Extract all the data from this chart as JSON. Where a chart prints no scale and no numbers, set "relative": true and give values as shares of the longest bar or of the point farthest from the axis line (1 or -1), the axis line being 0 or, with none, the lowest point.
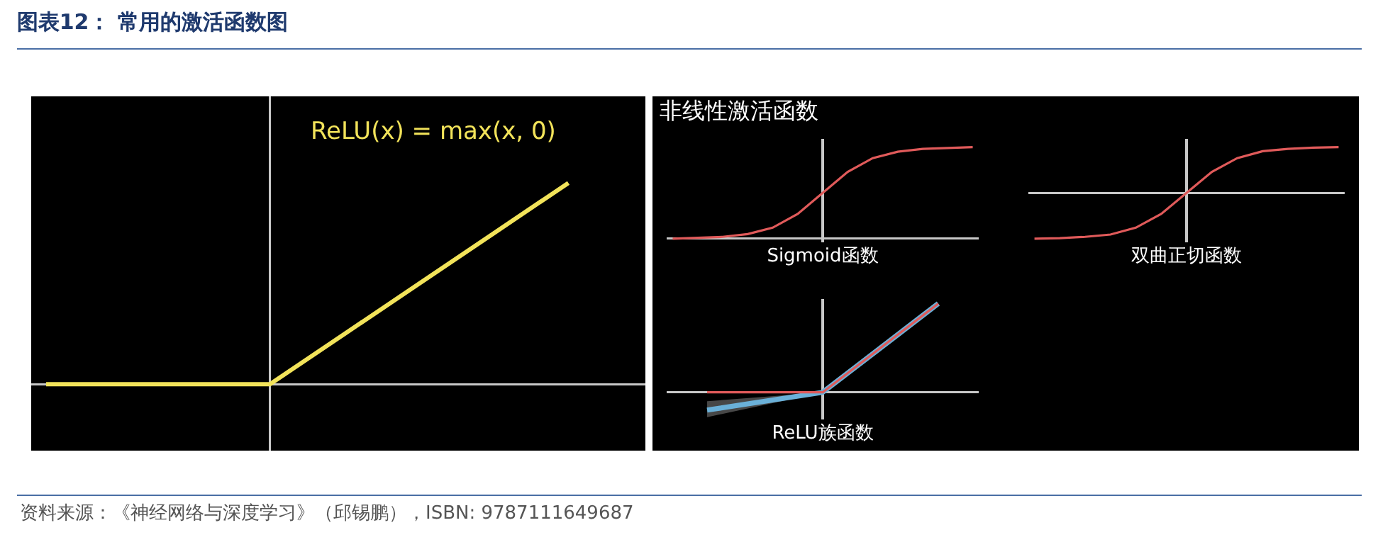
{
  "chart_data": [
    {
      "type": "line",
      "title": "图表12： 常用的激活函数图",
      "relative": true,
      "annotations": [
        "ReLU(x) = max(x, 0)",
        "资料来源：《神经网络与深度学习》（邱锡鹏），ISBN: 9787111649687"
      ],
      "categories": [
        null,
        null,
        null,
        null,
        null,
        null,
        null,
        null,
        null
      ],
      "series": [
        {
          "color": "#f2e35a",
          "values": [
            null,
            0,
            0,
            0,
            0,
            0.25,
            0.5,
            0.75,
            1
          ]
        }
      ]
    },
    {
      "type": "line",
      "title": "非线性激活函数",
      "xlabel": "Sigmoid函数",
      "relative": true,
      "categories": [
        null,
        null,
        null,
        null,
        null,
        null,
        null,
        null,
        null,
        null,
        null,
        null,
        null
      ],
      "series": [
        {
          "color": "#e05a5a",
          "values": [
            0,
            0.01,
            0.02,
            0.05,
            0.12,
            0.27,
            0.5,
            0.73,
            0.88,
            0.95,
            0.98,
            0.99,
            1
          ]
        }
      ]
    },
    {
      "type": "line",
      "xlabel": "双曲正切函数",
      "relative": true,
      "categories": [
        null,
        null,
        null,
        null,
        null,
        null,
        null,
        null,
        null,
        null,
        null,
        null,
        null
      ],
      "series": [
        {
          "color": "#e05a5a",
          "values": [
            -1,
            -0.99,
            -0.96,
            -0.91,
            -0.76,
            -0.46,
            0,
            0.46,
            0.76,
            0.91,
            0.96,
            0.99,
            1
          ]
        }
      ]
    },
    {
      "type": "line",
      "xlabel": "ReLU族函数",
      "relative": true,
      "categories": [
        null,
        null,
        null
      ],
      "series": [
        {
          "color": "#6ab0d8",
          "values": [
            -0.2,
            0,
            1
          ],
          "lower": [
            -0.28,
            0,
            1
          ],
          "upper": [
            -0.1,
            0,
            1
          ]
        },
        {
          "color": "#e05a5a",
          "values": [
            0,
            0,
            1
          ]
        }
      ]
    }
  ]
}
